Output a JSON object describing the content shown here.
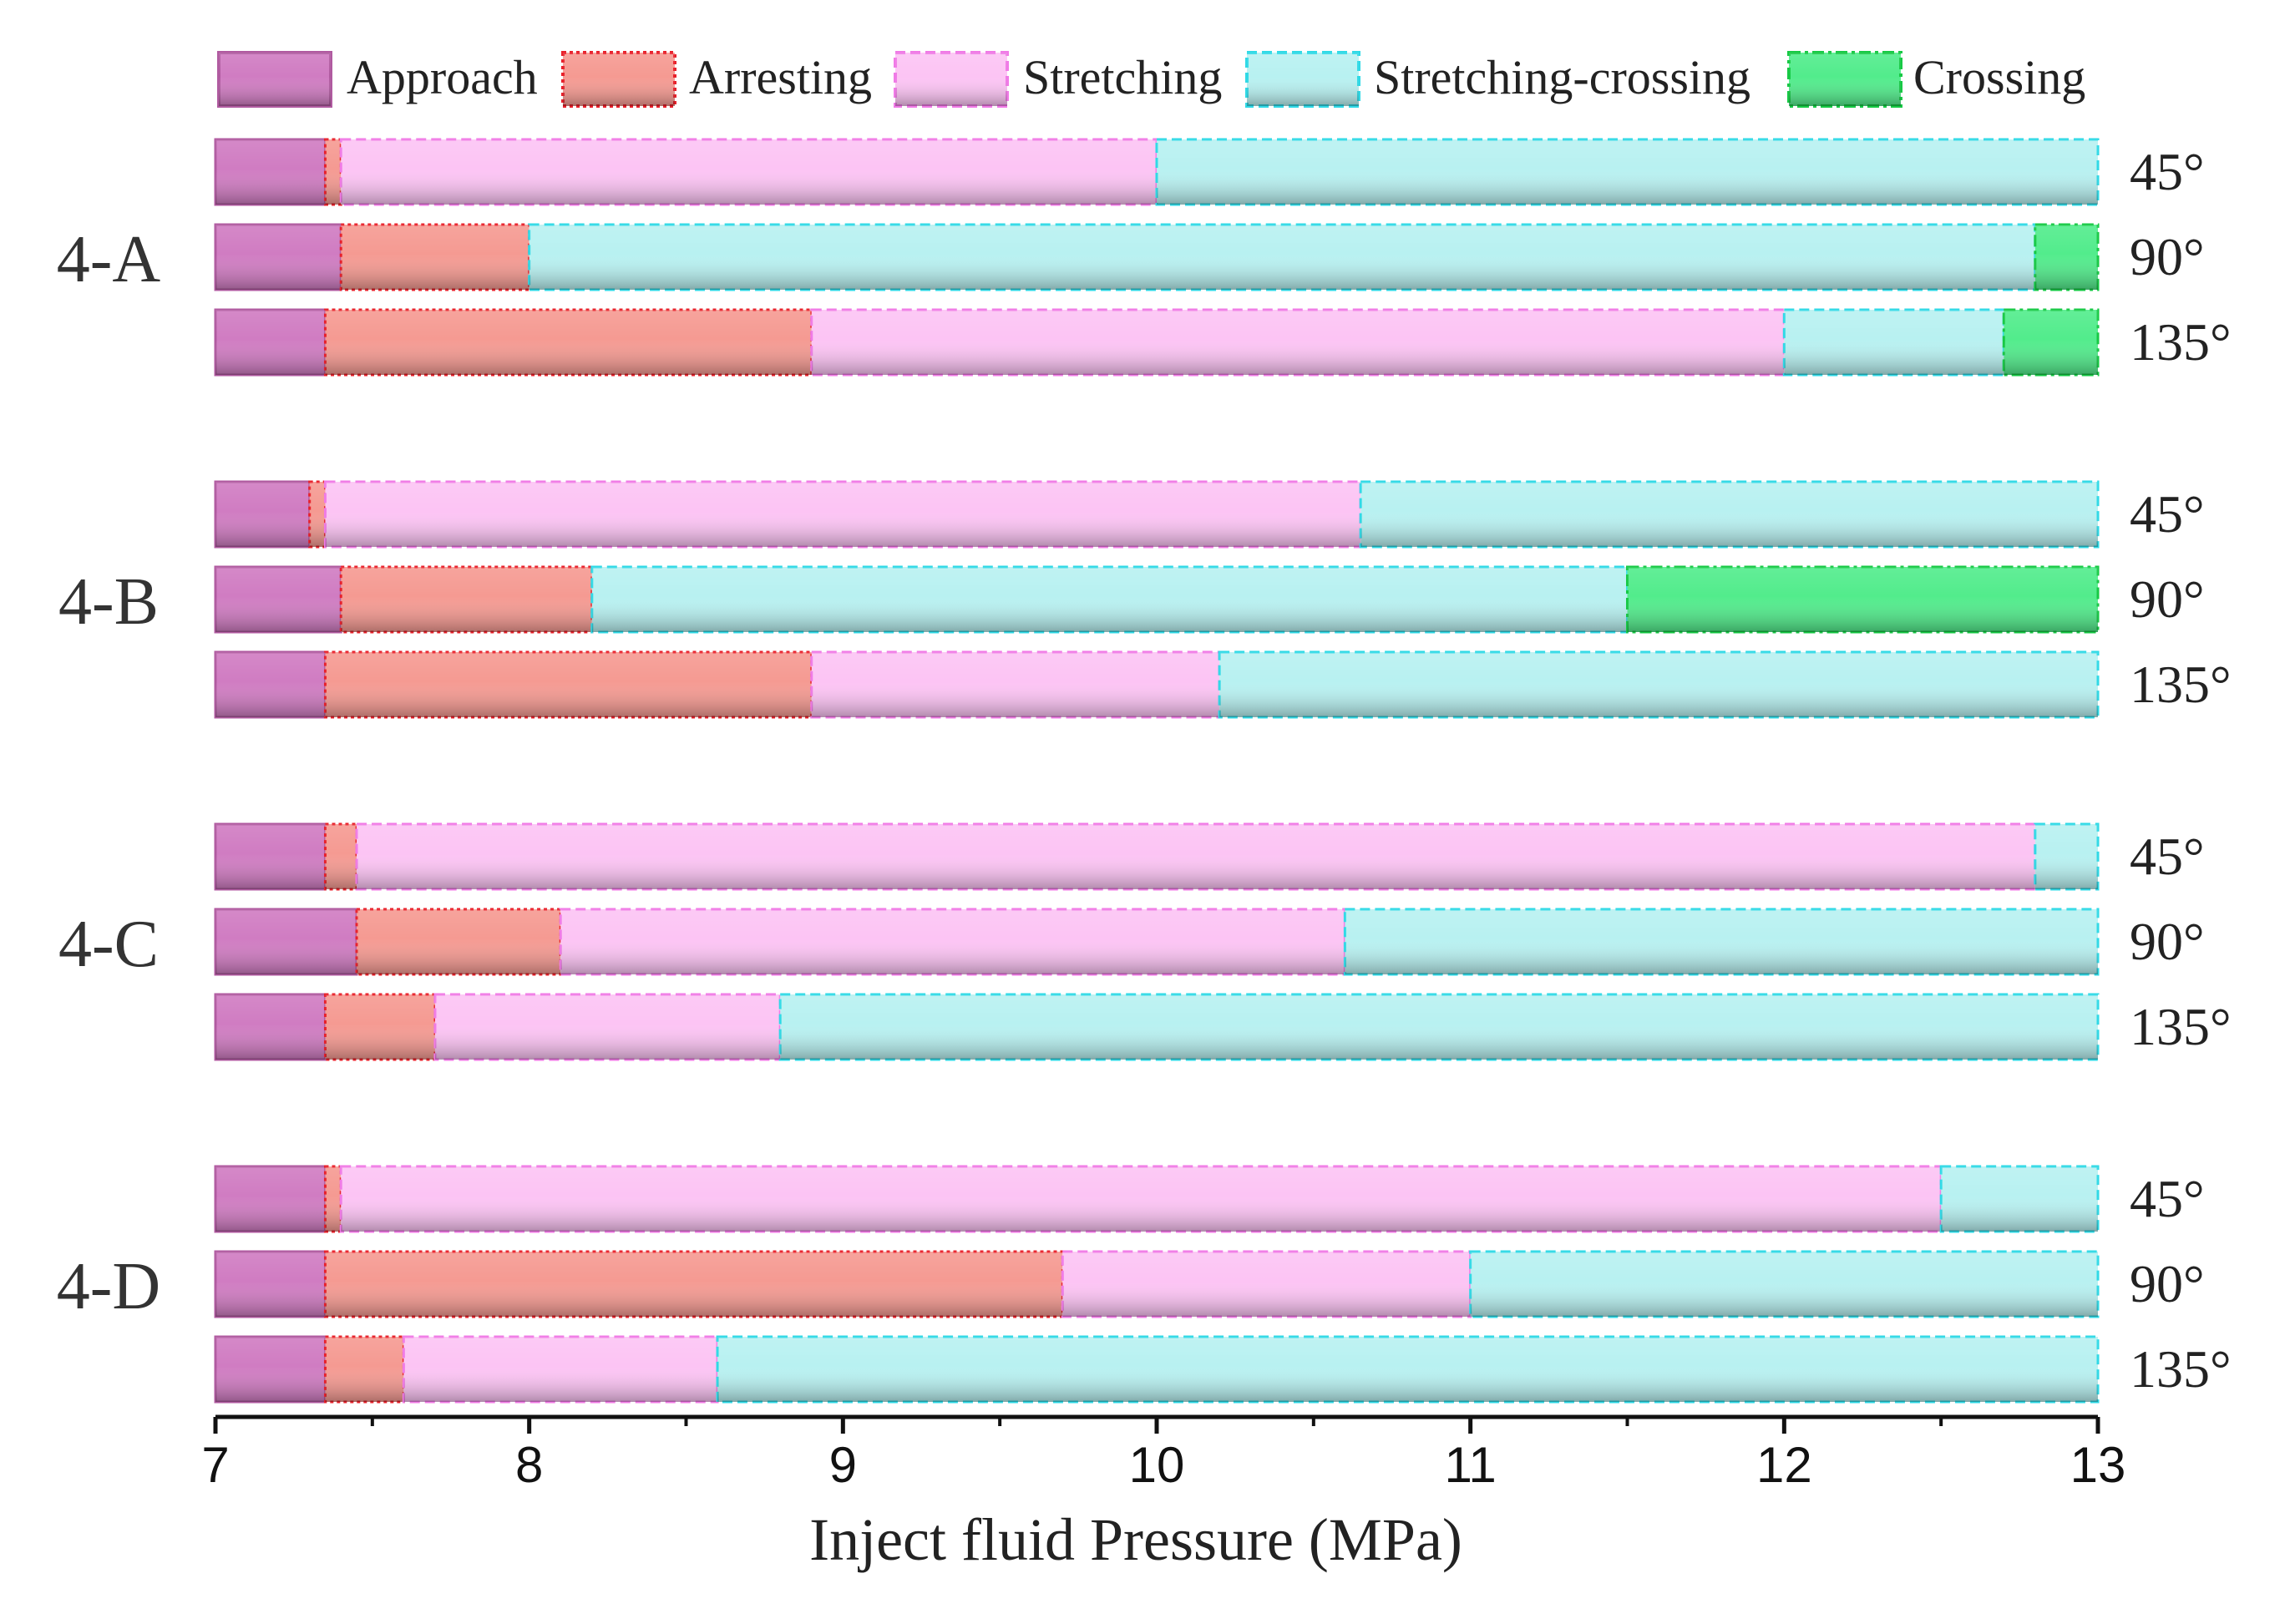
{
  "chart_data": {
    "type": "bar",
    "orientation": "horizontal",
    "stacked": true,
    "xlabel": "Inject fluid Pressure (MPa)",
    "xlim": [
      7,
      13
    ],
    "xticks": [
      7,
      8,
      9,
      10,
      11,
      12,
      13
    ],
    "legend_position": "top",
    "stages": [
      {
        "key": "approach",
        "name": "Approach",
        "color": "#d07cc2",
        "border": "#b05aa0",
        "dash": "none"
      },
      {
        "key": "arresting",
        "name": "Arresting",
        "color": "#f59a92",
        "border": "#e8202a",
        "dash": "dotted"
      },
      {
        "key": "stretching",
        "name": "Stretching",
        "color": "#fcc4f4",
        "border": "#f07ae6",
        "dash": "dashed"
      },
      {
        "key": "stretching_crossing",
        "name": "Stretching-crossing",
        "color": "#b8f1f1",
        "border": "#2fd9e6",
        "dash": "dashed"
      },
      {
        "key": "crossing",
        "name": "Crossing",
        "color": "#52ec8c",
        "border": "#16c944",
        "dash": "dashdot"
      }
    ],
    "groups": [
      {
        "name": "4-A",
        "bars": [
          {
            "angle": "45°",
            "segments": [
              [
                "approach",
                7,
                7.35
              ],
              [
                "arresting",
                7.35,
                7.4
              ],
              [
                "stretching",
                7.4,
                10.0
              ],
              [
                "stretching_crossing",
                10.0,
                13.0
              ]
            ]
          },
          {
            "angle": "90°",
            "segments": [
              [
                "approach",
                7,
                7.4
              ],
              [
                "arresting",
                7.4,
                8.0
              ],
              [
                "stretching_crossing",
                8.0,
                12.8
              ],
              [
                "crossing",
                12.8,
                13.0
              ]
            ]
          },
          {
            "angle": "135°",
            "segments": [
              [
                "approach",
                7,
                7.35
              ],
              [
                "arresting",
                7.35,
                8.9
              ],
              [
                "stretching",
                8.9,
                12.0
              ],
              [
                "stretching_crossing",
                12.0,
                12.7
              ],
              [
                "crossing",
                12.7,
                13.0
              ]
            ]
          }
        ]
      },
      {
        "name": "4-B",
        "bars": [
          {
            "angle": "45°",
            "segments": [
              [
                "approach",
                7,
                7.3
              ],
              [
                "arresting",
                7.3,
                7.35
              ],
              [
                "stretching",
                7.35,
                10.65
              ],
              [
                "stretching_crossing",
                10.65,
                13.0
              ]
            ]
          },
          {
            "angle": "90°",
            "segments": [
              [
                "approach",
                7,
                7.4
              ],
              [
                "arresting",
                7.4,
                8.2
              ],
              [
                "stretching_crossing",
                8.2,
                11.5
              ],
              [
                "crossing",
                11.5,
                13.0
              ]
            ]
          },
          {
            "angle": "135°",
            "segments": [
              [
                "approach",
                7,
                7.35
              ],
              [
                "arresting",
                7.35,
                8.9
              ],
              [
                "stretching",
                8.9,
                10.2
              ],
              [
                "stretching_crossing",
                10.2,
                13.0
              ]
            ]
          }
        ]
      },
      {
        "name": "4-C",
        "bars": [
          {
            "angle": "45°",
            "segments": [
              [
                "approach",
                7,
                7.35
              ],
              [
                "arresting",
                7.35,
                7.45
              ],
              [
                "stretching",
                7.45,
                12.8
              ],
              [
                "stretching_crossing",
                12.8,
                13.0
              ]
            ]
          },
          {
            "angle": "90°",
            "segments": [
              [
                "approach",
                7,
                7.45
              ],
              [
                "arresting",
                7.45,
                8.1
              ],
              [
                "stretching",
                8.1,
                10.6
              ],
              [
                "stretching_crossing",
                10.6,
                13.0
              ]
            ]
          },
          {
            "angle": "135°",
            "segments": [
              [
                "approach",
                7,
                7.35
              ],
              [
                "arresting",
                7.35,
                7.7
              ],
              [
                "stretching",
                7.7,
                8.8
              ],
              [
                "stretching_crossing",
                8.8,
                13.0
              ]
            ]
          }
        ]
      },
      {
        "name": "4-D",
        "bars": [
          {
            "angle": "45°",
            "segments": [
              [
                "approach",
                7,
                7.35
              ],
              [
                "arresting",
                7.35,
                7.4
              ],
              [
                "stretching",
                7.4,
                12.5
              ],
              [
                "stretching_crossing",
                12.5,
                13.0
              ]
            ]
          },
          {
            "angle": "90°",
            "segments": [
              [
                "approach",
                7,
                7.35
              ],
              [
                "arresting",
                7.35,
                9.7
              ],
              [
                "stretching",
                9.7,
                11.0
              ],
              [
                "stretching_crossing",
                11.0,
                13.0
              ]
            ]
          },
          {
            "angle": "135°",
            "segments": [
              [
                "approach",
                7,
                7.35
              ],
              [
                "arresting",
                7.35,
                7.6
              ],
              [
                "stretching",
                7.6,
                8.6
              ],
              [
                "stretching_crossing",
                8.6,
                13.0
              ]
            ]
          }
        ]
      }
    ]
  }
}
